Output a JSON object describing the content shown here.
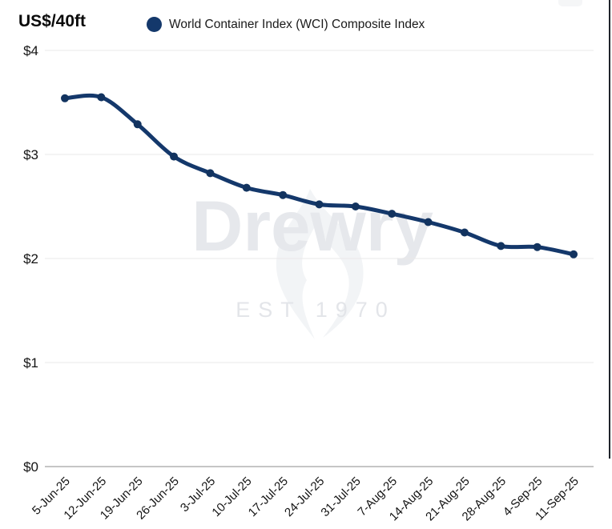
{
  "header": {
    "unit_label": "US$/40ft"
  },
  "legend": {
    "label": "World Container Index (WCI) Composite Index",
    "marker_color": "#14386b"
  },
  "watermark": {
    "brand": "Drewry",
    "subtitle": "EST 1970"
  },
  "colors": {
    "line": "#14386b",
    "marker": "#12335f",
    "grid": "#e9e9e9",
    "axis": "#c6c6c6",
    "tick_text": "#141414",
    "watermark_brand": "#e6e8ec",
    "watermark_sub": "#e3e5e9",
    "flame": "#f2f4f6",
    "crop_border": "#20242b"
  },
  "chart_data": {
    "type": "line",
    "title": "",
    "x": [
      "5-Jun-25",
      "12-Jun-25",
      "19-Jun-25",
      "26-Jun-25",
      "3-Jul-25",
      "10-Jul-25",
      "17-Jul-25",
      "24-Jul-25",
      "31-Jul-25",
      "7-Aug-25",
      "14-Aug-25",
      "21-Aug-25",
      "28-Aug-25",
      "4-Sep-25",
      "11-Sep-25"
    ],
    "series": [
      {
        "name": "World Container Index (WCI) Composite Index",
        "values": [
          3.54,
          3.55,
          3.29,
          2.98,
          2.82,
          2.68,
          2.61,
          2.52,
          2.5,
          2.43,
          2.35,
          2.25,
          2.12,
          2.11,
          2.04
        ]
      }
    ],
    "xlabel": "",
    "ylabel": "US$/40ft",
    "ylim": [
      0,
      4
    ],
    "yticks": [
      0,
      1,
      2,
      3,
      4
    ],
    "ytick_labels": [
      "$0",
      "$1",
      "$2",
      "$3",
      "$4"
    ],
    "x_label_rotation": -45,
    "grid": true,
    "legend_position": "top"
  }
}
